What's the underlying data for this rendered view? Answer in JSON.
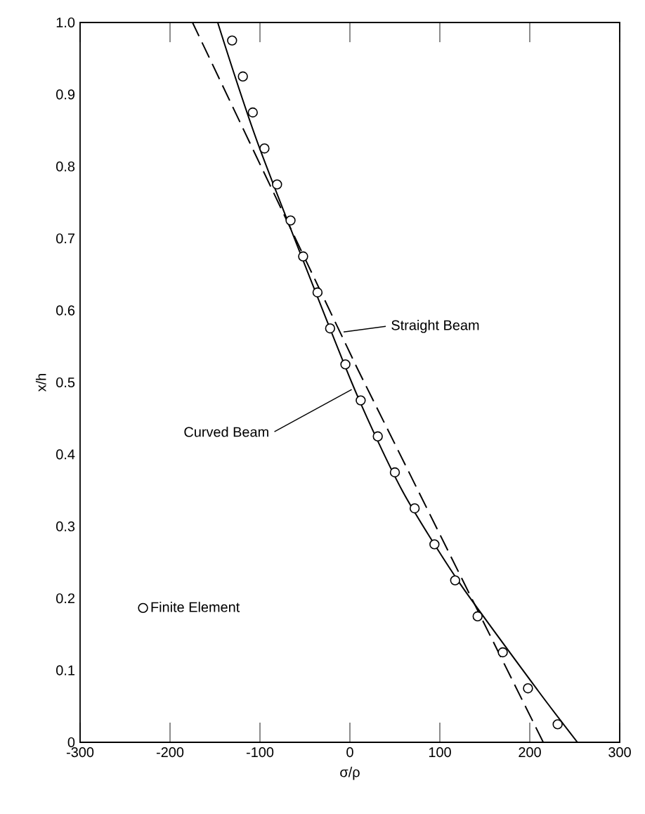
{
  "chart_data": {
    "type": "line",
    "xlabel": "σ/ρ",
    "ylabel": "x/h",
    "xlim": [
      -300,
      300
    ],
    "xticks": [
      -300,
      -200,
      -100,
      0,
      100,
      200,
      300
    ],
    "ylim": [
      0,
      1
    ],
    "yticks": [
      {
        "value": 0,
        "label": "0"
      },
      0.1,
      0.2,
      0.3,
      0.4,
      0.5,
      0.6,
      0.7,
      0.8,
      0.9,
      {
        "value": 1,
        "label": "1.0"
      }
    ],
    "grid": false,
    "legend": "bottom left",
    "series": [
      {
        "line_style": "dashed",
        "color": "#000000",
        "x": [
          215,
          8,
          -175
        ],
        "values": [
          0,
          0.52,
          1
        ]
      },
      {
        "line_style": "solid",
        "color": "#000000",
        "x": [
          253,
          209,
          121,
          58,
          2,
          -100,
          -147
        ],
        "values": [
          0,
          0.072,
          0.223,
          0.35,
          0.5,
          0.824,
          1
        ]
      },
      {
        "type": "scatter",
        "name": "Finite Element",
        "marker": "circle",
        "color": "#000000",
        "x": [
          231,
          198,
          170,
          142,
          117,
          94,
          72,
          50,
          31,
          12,
          -5,
          -22,
          -36,
          -52,
          -66,
          -81,
          -95,
          -108,
          -119,
          -131
        ],
        "values": [
          0.025,
          0.075,
          0.125,
          0.175,
          0.225,
          0.275,
          0.325,
          0.375,
          0.425,
          0.475,
          0.525,
          0.575,
          0.625,
          0.675,
          0.725,
          0.775,
          0.825,
          0.875,
          0.925,
          0.975
        ]
      }
    ],
    "annotations": [
      {
        "text": "Straight Beam",
        "x": -7,
        "y": 0.57
      },
      {
        "text": "Curved Beam",
        "x": 2,
        "y": 0.49
      }
    ]
  }
}
